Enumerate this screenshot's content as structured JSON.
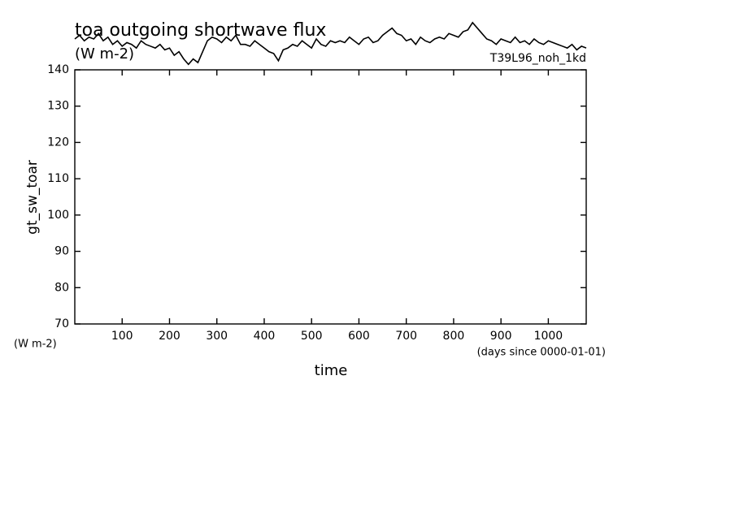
{
  "chart_data": {
    "type": "line",
    "title": "toa outgoing shortwave flux",
    "units": "(W m-2)",
    "experiment": "T39L96_noh_1kd",
    "ylabel": "gt_sw_toar",
    "y_units": "(W m-2)",
    "x_units": "(days since 0000-01-01)",
    "xlabel": "time",
    "xlim": [
      0,
      1080
    ],
    "ylim": [
      70,
      140
    ],
    "xticks": [
      100,
      200,
      300,
      400,
      500,
      600,
      700,
      800,
      900,
      1000
    ],
    "yticks": [
      70,
      80,
      90,
      100,
      110,
      120,
      130,
      140
    ],
    "color": "#000000",
    "x": [
      0,
      10,
      20,
      30,
      40,
      50,
      60,
      70,
      80,
      90,
      100,
      110,
      120,
      130,
      140,
      150,
      160,
      170,
      180,
      190,
      200,
      210,
      220,
      230,
      240,
      250,
      260,
      270,
      280,
      290,
      300,
      310,
      320,
      330,
      340,
      350,
      360,
      370,
      380,
      390,
      400,
      410,
      420,
      430,
      440,
      450,
      460,
      470,
      480,
      490,
      500,
      510,
      520,
      530,
      540,
      550,
      560,
      570,
      580,
      590,
      600,
      610,
      620,
      630,
      640,
      650,
      660,
      670,
      680,
      690,
      700,
      710,
      720,
      730,
      740,
      750,
      760,
      770,
      780,
      790,
      800,
      810,
      820,
      830,
      840,
      850,
      860,
      870,
      880,
      890,
      900,
      910,
      920,
      930,
      940,
      950,
      960,
      970,
      980,
      990,
      1000,
      1010,
      1020,
      1030,
      1040,
      1050,
      1060,
      1070,
      1080
    ],
    "values": [
      148.5,
      149.5,
      148,
      149,
      148.5,
      150,
      148,
      149,
      147,
      148,
      146.5,
      147.5,
      147,
      146,
      148,
      147,
      146.5,
      146,
      147,
      145.5,
      146,
      144,
      145,
      143,
      141.5,
      143,
      142,
      145,
      148,
      149,
      148.5,
      147.5,
      149,
      148,
      149.5,
      147,
      147,
      146.5,
      148,
      147,
      146,
      145,
      144.5,
      142.5,
      145.5,
      146,
      147,
      146.5,
      148,
      147,
      146,
      148.5,
      147,
      146.5,
      148,
      147.5,
      148,
      147.5,
      149,
      148,
      147,
      148.5,
      149,
      147.5,
      148,
      149.5,
      150.5,
      151.5,
      150,
      149.5,
      148,
      148.5,
      147,
      149,
      148,
      147.5,
      148.5,
      149,
      148.5,
      150,
      149.5,
      149,
      150.5,
      151,
      153,
      151.5,
      150,
      148.5,
      148,
      147,
      148.5,
      148,
      147.5,
      149,
      147.5,
      148,
      147,
      148.5,
      147.5,
      147,
      148,
      147.5,
      147,
      146.5,
      146,
      147,
      145.5,
      146.5,
      146
    ]
  }
}
